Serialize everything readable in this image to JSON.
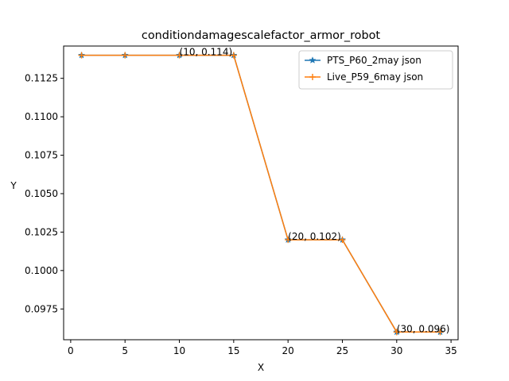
{
  "chart_data": {
    "type": "line",
    "title": "conditiondamagescalefactor_armor_robot",
    "xlabel": "X",
    "ylabel": "Y",
    "xlim": [
      -0.65,
      35.65
    ],
    "ylim": [
      0.0955,
      0.1146
    ],
    "xticks": [
      0,
      5,
      10,
      15,
      20,
      25,
      30,
      35
    ],
    "yticks": [
      0.0975,
      0.1,
      0.1025,
      0.105,
      0.1075,
      0.11,
      0.1125
    ],
    "ytick_labels": [
      "0.0975",
      "0.1000",
      "0.1025",
      "0.1050",
      "0.1075",
      "0.1100",
      "0.1125"
    ],
    "grid": false,
    "legend_position": "top-right",
    "series": [
      {
        "name": "PTS_P60_2may json",
        "color": "#1f77b4",
        "marker": "star",
        "x": [
          1,
          5,
          10,
          15,
          20,
          25,
          30,
          34
        ],
        "y": [
          0.114,
          0.114,
          0.114,
          0.114,
          0.102,
          0.102,
          0.096,
          0.096
        ]
      },
      {
        "name": "Live_P59_6may json",
        "color": "#ff7f0e",
        "marker": "plus",
        "x": [
          1,
          5,
          10,
          15,
          20,
          25,
          30,
          34
        ],
        "y": [
          0.114,
          0.114,
          0.114,
          0.114,
          0.102,
          0.102,
          0.096,
          0.096
        ]
      }
    ],
    "annotations": [
      {
        "x": 10,
        "y": 0.114,
        "text": "(10, 0.114)"
      },
      {
        "x": 20,
        "y": 0.102,
        "text": "(20, 0.102)"
      },
      {
        "x": 30,
        "y": 0.096,
        "text": "(30, 0.096)"
      }
    ]
  }
}
